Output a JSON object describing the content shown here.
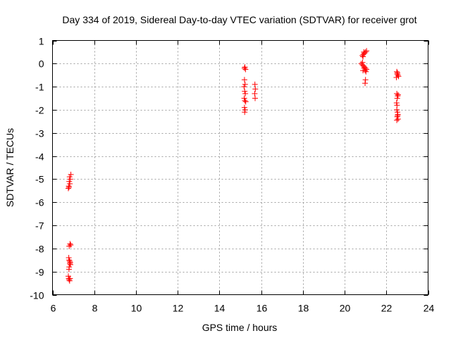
{
  "chart_data": {
    "type": "scatter",
    "title": "Day 334 of 2019, Sidereal Day-to-day VTEC variation (SDTVAR) for receiver grot",
    "xlabel": "GPS time / hours",
    "ylabel": "SDTVAR / TECUs",
    "xlim": [
      6,
      24
    ],
    "ylim": [
      -10,
      1
    ],
    "xticks": [
      6,
      8,
      10,
      12,
      14,
      16,
      18,
      20,
      22,
      24
    ],
    "yticks": [
      1,
      0,
      -1,
      -2,
      -3,
      -4,
      -5,
      -6,
      -7,
      -8,
      -9,
      -10
    ],
    "xtick_labels": [
      "6",
      "8",
      "10",
      "12",
      "14",
      "16",
      "18",
      "20",
      "22",
      "24"
    ],
    "ytick_labels": [
      "1",
      "0",
      "-1",
      "-2",
      "-3",
      "-4",
      "-5",
      "-6",
      "-7",
      "-8",
      "-9",
      "-10"
    ],
    "grid": true,
    "marker": "+",
    "series": [
      {
        "name": "SDTVAR",
        "color": "#ff0000",
        "points": [
          [
            6.82,
            -4.9
          ],
          [
            6.85,
            -5.0
          ],
          [
            6.8,
            -5.1
          ],
          [
            6.78,
            -5.3
          ],
          [
            6.76,
            -5.4
          ],
          [
            6.88,
            -4.8
          ],
          [
            6.83,
            -5.2
          ],
          [
            6.79,
            -5.35
          ],
          [
            6.84,
            -7.8
          ],
          [
            6.87,
            -7.85
          ],
          [
            6.8,
            -7.9
          ],
          [
            6.78,
            -8.4
          ],
          [
            6.8,
            -8.5
          ],
          [
            6.82,
            -8.55
          ],
          [
            6.85,
            -8.6
          ],
          [
            6.83,
            -8.65
          ],
          [
            6.86,
            -8.7
          ],
          [
            6.8,
            -8.8
          ],
          [
            6.79,
            -8.9
          ],
          [
            6.76,
            -9.2
          ],
          [
            6.78,
            -9.3
          ],
          [
            6.8,
            -9.35
          ],
          [
            6.82,
            -9.4
          ],
          [
            6.84,
            -9.3
          ],
          [
            15.2,
            -0.2
          ],
          [
            15.25,
            -0.25
          ],
          [
            15.22,
            -0.15
          ],
          [
            15.2,
            -0.7
          ],
          [
            15.23,
            -0.9
          ],
          [
            15.18,
            -1.0
          ],
          [
            15.21,
            -1.2
          ],
          [
            15.24,
            -1.3
          ],
          [
            15.19,
            -1.5
          ],
          [
            15.22,
            -1.6
          ],
          [
            15.26,
            -1.65
          ],
          [
            15.2,
            -1.9
          ],
          [
            15.23,
            -2.0
          ],
          [
            15.21,
            -2.1
          ],
          [
            15.7,
            -0.9
          ],
          [
            15.72,
            -1.1
          ],
          [
            15.69,
            -1.3
          ],
          [
            15.71,
            -1.5
          ],
          [
            20.85,
            0.35
          ],
          [
            20.9,
            0.4
          ],
          [
            20.95,
            0.45
          ],
          [
            21.0,
            0.5
          ],
          [
            21.05,
            0.55
          ],
          [
            20.88,
            0.3
          ],
          [
            20.92,
            0.5
          ],
          [
            20.8,
            0.0
          ],
          [
            20.85,
            -0.05
          ],
          [
            20.9,
            -0.1
          ],
          [
            20.95,
            -0.15
          ],
          [
            21.0,
            -0.2
          ],
          [
            21.05,
            -0.25
          ],
          [
            20.88,
            -0.3
          ],
          [
            20.93,
            -0.2
          ],
          [
            20.98,
            -0.3
          ],
          [
            21.02,
            -0.35
          ],
          [
            20.86,
            0.05
          ],
          [
            21.0,
            -0.7
          ],
          [
            20.98,
            -0.85
          ],
          [
            22.5,
            -0.35
          ],
          [
            22.52,
            -0.45
          ],
          [
            22.55,
            -0.5
          ],
          [
            22.58,
            -0.55
          ],
          [
            22.48,
            -0.6
          ],
          [
            22.53,
            -0.4
          ],
          [
            22.5,
            -1.3
          ],
          [
            22.54,
            -1.4
          ],
          [
            22.52,
            -1.5
          ],
          [
            22.56,
            -1.35
          ],
          [
            22.49,
            -1.7
          ],
          [
            22.51,
            -1.8
          ],
          [
            22.5,
            -2.0
          ],
          [
            22.53,
            -2.1
          ],
          [
            22.55,
            -2.2
          ],
          [
            22.52,
            -2.3
          ],
          [
            22.56,
            -2.4
          ],
          [
            22.5,
            -2.45
          ],
          [
            22.54,
            -2.25
          ]
        ]
      }
    ]
  }
}
